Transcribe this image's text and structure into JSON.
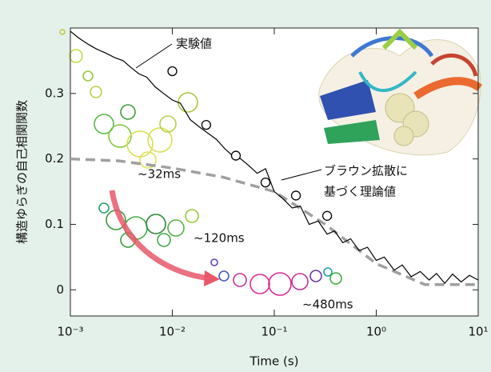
{
  "chart_data": {
    "type": "line",
    "x_label": "Time (s)",
    "y_label": "構造ゆらぎの自己相関関数",
    "xscale": "log",
    "xlim": [
      0.001,
      10
    ],
    "ylim": [
      -0.04,
      0.4
    ],
    "xticks": [
      {
        "value": 0.001,
        "label": "10⁻³"
      },
      {
        "value": 0.01,
        "label": "10⁻²"
      },
      {
        "value": 0.1,
        "label": "10⁻¹"
      },
      {
        "value": 1,
        "label": "10⁰"
      },
      {
        "value": 10,
        "label": "10¹"
      }
    ],
    "yticks": [
      0,
      0.1,
      0.2,
      0.3
    ],
    "annotations": [
      "実験値",
      "~32ms",
      "~120ms",
      "~480ms",
      "ブラウン拡散に",
      "基づく理論値"
    ],
    "series": [
      {
        "style": "line",
        "color": "#000000",
        "x": [
          0.001,
          0.0012,
          0.0015,
          0.0018,
          0.0022,
          0.0027,
          0.0033,
          0.0039,
          0.0047,
          0.0056,
          0.0068,
          0.0082,
          0.01,
          0.012,
          0.015,
          0.018,
          0.022,
          0.027,
          0.033,
          0.039,
          0.047,
          0.056,
          0.068,
          0.082,
          0.1,
          0.12,
          0.15,
          0.18,
          0.22,
          0.27,
          0.33,
          0.39,
          0.47,
          0.56,
          0.68,
          0.82,
          1,
          1.2,
          1.5,
          1.8,
          2.2,
          2.7,
          3.3,
          3.9,
          4.7,
          5.6,
          6.8,
          8.2,
          10
        ],
        "values": [
          0.395,
          0.385,
          0.375,
          0.368,
          0.362,
          0.355,
          0.35,
          0.34,
          0.33,
          0.325,
          0.31,
          0.3,
          0.29,
          0.285,
          0.26,
          0.25,
          0.24,
          0.23,
          0.215,
          0.205,
          0.2,
          0.19,
          0.178,
          0.185,
          0.15,
          0.14,
          0.125,
          0.128,
          0.1,
          0.105,
          0.085,
          0.09,
          0.072,
          0.078,
          0.06,
          0.065,
          0.045,
          0.05,
          0.03,
          0.038,
          0.02,
          0.028,
          0.015,
          0.025,
          0.01,
          0.024,
          0.012,
          0.022,
          0.015
        ]
      },
      {
        "style": "marker",
        "color": "#000000",
        "x": [
          0.01,
          0.0215,
          0.042,
          0.082,
          0.163,
          0.33
        ],
        "values": [
          0.334,
          0.252,
          0.205,
          0.164,
          0.144,
          0.113
        ]
      },
      {
        "style": "dashed",
        "color": "#a0a0a0",
        "x": [
          0.001,
          0.003,
          0.01,
          0.0316,
          0.1,
          0.316,
          1,
          3,
          10
        ],
        "values": [
          0.2,
          0.197,
          0.186,
          0.172,
          0.15,
          0.1,
          0.04,
          0.008,
          0.008
        ]
      }
    ]
  }
}
